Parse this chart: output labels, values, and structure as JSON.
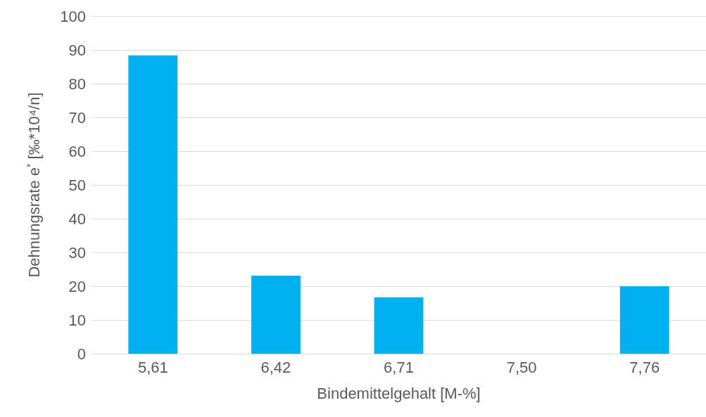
{
  "chart_data": {
    "type": "bar",
    "xlabel": "Bindemittelgehalt [M-%]",
    "ylabel": "Dehnungsrate e$^{*}$ [‰*10⁴/n]",
    "categories": [
      "5,61",
      "6,42",
      "6,71",
      "7,50",
      "7,76"
    ],
    "values": [
      88.4,
      23.1,
      16.7,
      null,
      20.0
    ],
    "color": "#00b0f0",
    "ylim": [
      0,
      100
    ],
    "yticks": [
      0,
      10,
      20,
      30,
      40,
      50,
      60,
      70,
      80,
      90,
      100
    ],
    "grid": "y"
  }
}
